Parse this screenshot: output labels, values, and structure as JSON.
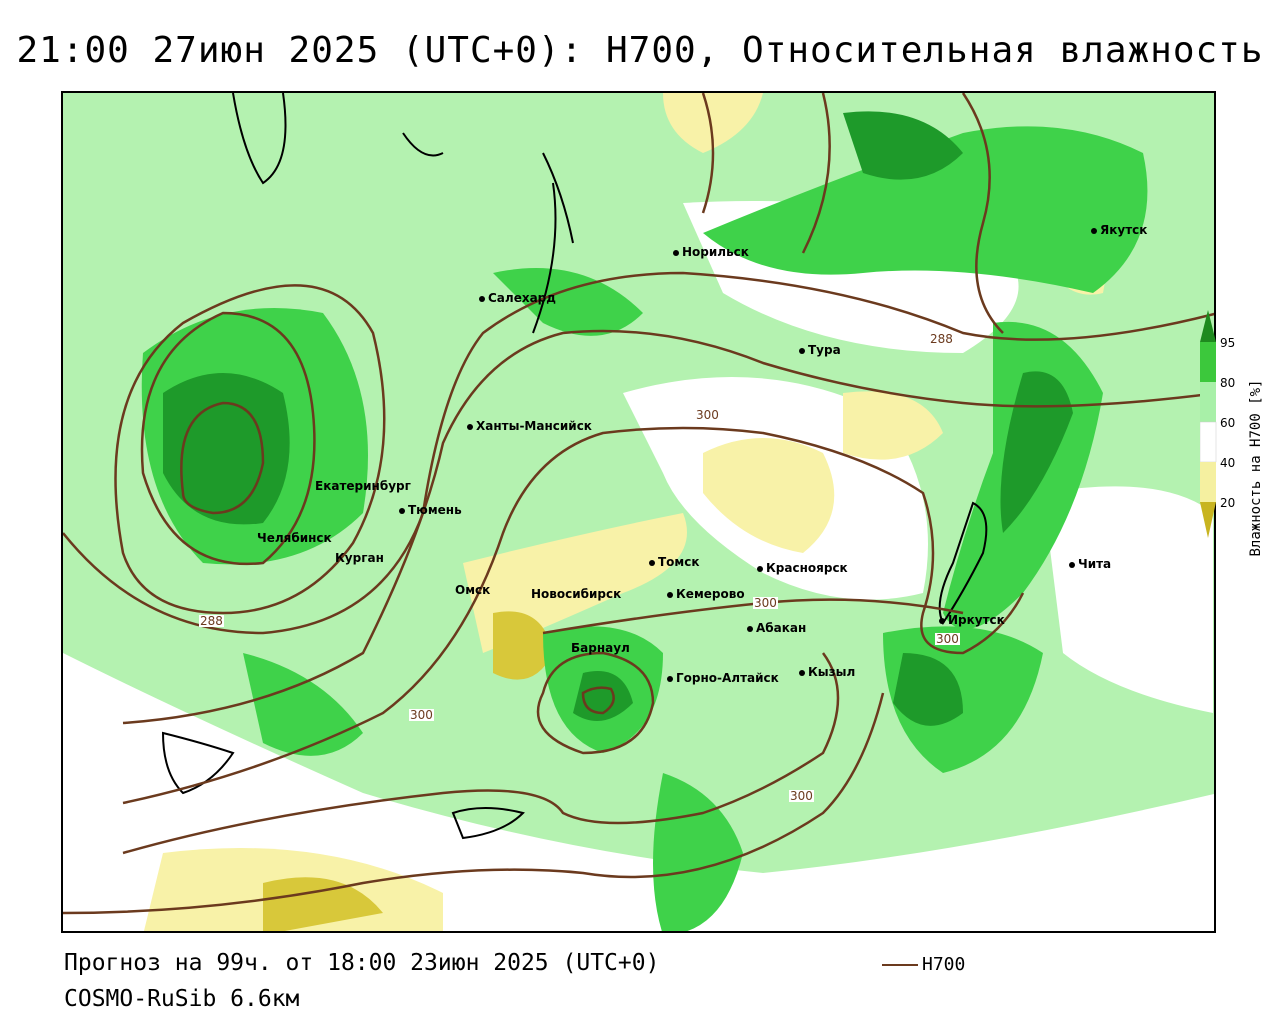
{
  "title": "21:00 27июн 2025 (UTC+0): H700, Относительная влажность",
  "footer": {
    "forecast": "Прогноз на 99ч. от 18:00 23июн 2025 (UTC+0)",
    "model": "COSMO-RuSib 6.6км",
    "line_legend": "H700"
  },
  "legend": {
    "title": "Влажность на H700 [%]",
    "ticks": [
      "95",
      "80",
      "60",
      "40",
      "20"
    ],
    "colors": {
      "c95": "#1e8a1e",
      "c80": "#3cc83c",
      "c60": "#a8f0a8",
      "c40": "#ffffff",
      "c20": "#f5f0a0",
      "c0": "#c8b420"
    }
  },
  "colors": {
    "contour": "#6b3a1e",
    "green_dark": "#1e9a2a",
    "green": "#3fd24a",
    "green_light": "#b4f2b0",
    "yellow_light": "#f8f2a8",
    "yellow_dark": "#d8c83a"
  },
  "cities": [
    {
      "id": "norilsk",
      "name": "Норильск"
    },
    {
      "id": "yakutsk",
      "name": "Якутск"
    },
    {
      "id": "salekhard",
      "name": "Салехард"
    },
    {
      "id": "tura",
      "name": "Тура"
    },
    {
      "id": "khanty",
      "name": "Ханты-Мансийск"
    },
    {
      "id": "ekb",
      "name": "Екатеринбург"
    },
    {
      "id": "tyumen",
      "name": "Тюмень"
    },
    {
      "id": "chelyabinsk",
      "name": "Челябинск"
    },
    {
      "id": "kurgan",
      "name": "Курган"
    },
    {
      "id": "omsk",
      "name": "Омск"
    },
    {
      "id": "novosibirsk",
      "name": "Новосибирск"
    },
    {
      "id": "tomsk",
      "name": "Томск"
    },
    {
      "id": "kemerovo",
      "name": "Кемерово"
    },
    {
      "id": "krasnoyarsk",
      "name": "Красноярск"
    },
    {
      "id": "abakan",
      "name": "Абакан"
    },
    {
      "id": "barnaul",
      "name": "Барнаул"
    },
    {
      "id": "gorno",
      "name": "Горно-Алтайск"
    },
    {
      "id": "kyzyl",
      "name": "Кызыл"
    },
    {
      "id": "irkutsk",
      "name": "Иркутск"
    },
    {
      "id": "chita",
      "name": "Чита"
    }
  ],
  "contour_labels": [
    "288",
    "300",
    "288",
    "300",
    "300",
    "300",
    "300"
  ]
}
